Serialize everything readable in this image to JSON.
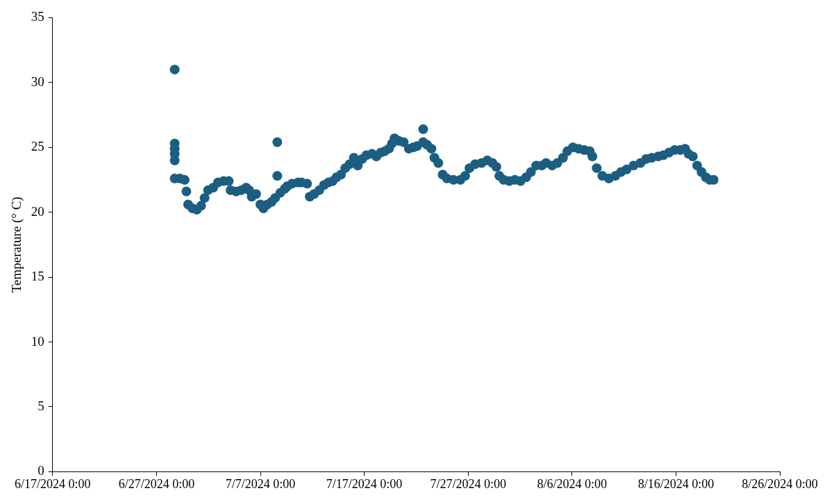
{
  "chart_data": {
    "type": "scatter",
    "ylabel": "Temperature (° C)",
    "marker": "circle",
    "grid": false,
    "legend": false,
    "xlim": [
      "2024-06-17",
      "2024-08-26"
    ],
    "xticks": [
      {
        "value": "2024-06-17",
        "label": "6/17/2024 0:00"
      },
      {
        "value": "2024-06-27",
        "label": "6/27/2024 0:00"
      },
      {
        "value": "2024-07-07",
        "label": "7/7/2024 0:00"
      },
      {
        "value": "2024-07-17",
        "label": "7/17/2024 0:00"
      },
      {
        "value": "2024-07-27",
        "label": "7/27/2024 0:00"
      },
      {
        "value": "2024-08-06",
        "label": "8/6/2024 0:00"
      },
      {
        "value": "2024-08-16",
        "label": "8/16/2024 0:00"
      },
      {
        "value": "2024-08-26",
        "label": "8/26/2024 0:00"
      }
    ],
    "ylim": [
      0,
      35
    ],
    "yticks": [
      0,
      5,
      10,
      15,
      20,
      25,
      30,
      35
    ],
    "series": [
      {
        "color": "#1b5e82",
        "x": [
          "2024-06-28T18:00",
          "2024-06-28T18:00",
          "2024-06-28T18:00",
          "2024-06-28T18:00",
          "2024-06-28T18:00",
          "2024-06-28T18:00",
          "2024-06-29T06:00",
          "2024-06-29T17:00",
          "2024-06-29T21:00",
          "2024-06-30T01:00",
          "2024-06-30T11:00",
          "2024-06-30T21:00",
          "2024-07-01T07:00",
          "2024-07-01T15:00",
          "2024-07-01T23:00",
          "2024-07-02T11:00",
          "2024-07-02T22:00",
          "2024-07-03T11:00",
          "2024-07-03T23:00",
          "2024-07-04T03:00",
          "2024-07-04T16:00",
          "2024-07-05T04:00",
          "2024-07-05T15:00",
          "2024-07-05T22:00",
          "2024-07-06T04:00",
          "2024-07-06T14:00",
          "2024-07-07T00:00",
          "2024-07-07T07:00",
          "2024-07-07T16:00",
          "2024-07-08T02:00",
          "2024-07-08T10:00",
          "2024-07-08T15:00",
          "2024-07-08T15:00",
          "2024-07-08T22:00",
          "2024-07-09T08:00",
          "2024-07-09T14:00",
          "2024-07-10T01:00",
          "2024-07-10T15:00",
          "2024-07-10T23:00",
          "2024-07-11T12:00",
          "2024-07-11T18:00",
          "2024-07-12T04:00",
          "2024-07-12T16:00",
          "2024-07-13T03:00",
          "2024-07-13T13:00",
          "2024-07-13T23:00",
          "2024-07-14T08:00",
          "2024-07-14T18:00",
          "2024-07-15T04:00",
          "2024-07-15T14:00",
          "2024-07-16T00:00",
          "2024-07-16T09:00",
          "2024-07-16T19:00",
          "2024-07-17T05:00",
          "2024-07-17T18:00",
          "2024-07-18T04:00",
          "2024-07-18T14:00",
          "2024-07-18T23:00",
          "2024-07-19T09:00",
          "2024-07-19T16:00",
          "2024-07-19T22:00",
          "2024-07-20T08:00",
          "2024-07-20T19:00",
          "2024-07-21T07:00",
          "2024-07-21T17:00",
          "2024-07-22T02:00",
          "2024-07-22T16:00",
          "2024-07-22T16:00",
          "2024-07-23T01:00",
          "2024-07-23T11:00",
          "2024-07-23T18:00",
          "2024-07-24T03:00",
          "2024-07-24T13:00",
          "2024-07-24T23:00",
          "2024-07-25T14:00",
          "2024-07-26T06:00",
          "2024-07-26T17:00",
          "2024-07-27T03:00",
          "2024-07-27T16:00",
          "2024-07-28T07:00",
          "2024-07-28T20:00",
          "2024-07-29T08:00",
          "2024-07-29T17:00",
          "2024-07-30T00:00",
          "2024-07-30T10:00",
          "2024-07-30T23:00",
          "2024-07-31T12:00",
          "2024-08-01T01:00",
          "2024-08-01T14:00",
          "2024-08-02T01:00",
          "2024-08-02T13:00",
          "2024-08-03T02:00",
          "2024-08-03T12:00",
          "2024-08-04T02:00",
          "2024-08-04T14:00",
          "2024-08-05T03:00",
          "2024-08-05T13:00",
          "2024-08-06T02:00",
          "2024-08-06T15:00",
          "2024-08-07T04:00",
          "2024-08-07T17:00",
          "2024-08-07T23:00",
          "2024-08-08T09:00",
          "2024-08-08T22:00",
          "2024-08-09T13:00",
          "2024-08-10T04:00",
          "2024-08-10T17:00",
          "2024-08-11T06:00",
          "2024-08-11T22:00",
          "2024-08-12T14:00",
          "2024-08-13T03:00",
          "2024-08-13T16:00",
          "2024-08-14T07:00",
          "2024-08-14T19:00",
          "2024-08-15T08:00",
          "2024-08-15T21:00",
          "2024-08-16T10:00",
          "2024-08-16T21:00",
          "2024-08-17T05:00",
          "2024-08-17T15:00",
          "2024-08-18T01:00",
          "2024-08-18T11:00",
          "2024-08-18T21:00",
          "2024-08-19T06:00",
          "2024-08-19T15:00"
        ],
        "values": [
          31.0,
          25.3,
          24.9,
          24.5,
          24.0,
          22.6,
          22.6,
          22.5,
          21.6,
          20.6,
          20.3,
          20.2,
          20.5,
          21.1,
          21.7,
          21.9,
          22.3,
          22.4,
          22.4,
          21.7,
          21.6,
          21.7,
          21.9,
          21.7,
          21.2,
          21.4,
          20.6,
          20.3,
          20.6,
          20.8,
          21.1,
          25.4,
          22.8,
          21.5,
          21.8,
          22.0,
          22.2,
          22.3,
          22.3,
          22.2,
          21.2,
          21.4,
          21.7,
          22.1,
          22.3,
          22.4,
          22.7,
          22.9,
          23.4,
          23.7,
          24.2,
          23.6,
          24.1,
          24.4,
          24.5,
          24.3,
          24.6,
          24.7,
          24.9,
          25.3,
          25.7,
          25.5,
          25.4,
          24.9,
          25.0,
          25.1,
          25.4,
          26.4,
          25.2,
          24.9,
          24.2,
          23.8,
          22.9,
          22.6,
          22.5,
          22.5,
          22.8,
          23.4,
          23.7,
          23.8,
          24.0,
          23.8,
          23.5,
          22.8,
          22.5,
          22.4,
          22.5,
          22.4,
          22.7,
          23.1,
          23.6,
          23.6,
          23.8,
          23.6,
          23.8,
          24.2,
          24.7,
          25.0,
          24.9,
          24.8,
          24.7,
          24.3,
          23.4,
          22.8,
          22.6,
          22.8,
          23.1,
          23.3,
          23.6,
          23.8,
          24.1,
          24.2,
          24.3,
          24.4,
          24.6,
          24.8,
          24.8,
          24.9,
          24.5,
          24.3,
          23.6,
          23.1,
          22.7,
          22.5,
          22.5
        ]
      }
    ]
  }
}
